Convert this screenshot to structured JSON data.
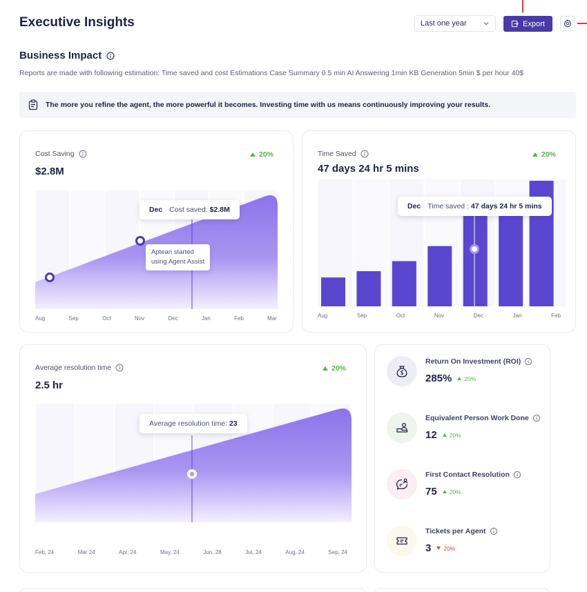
{
  "header": {
    "title": "Executive Insights",
    "range_select": "Last one year",
    "export_label": "Export"
  },
  "section": {
    "title": "Business Impact",
    "subtitle": "Reports are made with following estimation:  Time saved and cost Estimations Case Summary 0.5 min AI Answering 1min KB Generation 5min  $ per hour 40$",
    "banner": "The more you refine the agent, the more powerful it becomes. Investing time with us means continuously improving your results."
  },
  "cost_card": {
    "label": "Cost Saving",
    "value": "$2.8M",
    "change": "20%",
    "tooltip_month": "Dec",
    "tooltip_label": "Cost saved:",
    "tooltip_value": "$2.8M",
    "note_line1": "Aptean started",
    "note_line2": "using Agent Assist"
  },
  "time_card": {
    "label": "Time Saved",
    "value": "47 days 24 hr 5 mins",
    "change": "20%",
    "tooltip_month": "Dec",
    "tooltip_label": "Time saved :",
    "tooltip_value": "47 days 24 hr 5 mins"
  },
  "res_card": {
    "label": "Average resolution time",
    "value": "2.5 hr",
    "change": "20%",
    "tooltip_label": "Average resolution time:",
    "tooltip_value": "23"
  },
  "kpis": [
    {
      "label": "Return On Investment (ROI)",
      "value": "285%",
      "change": "20%",
      "trend": "up",
      "icon": "money-bag-icon"
    },
    {
      "label": "Equivalent Person Work Done",
      "value": "12",
      "change": "20%",
      "trend": "up",
      "icon": "person-desk-icon"
    },
    {
      "label": "First Contact Resolution",
      "value": "75",
      "change": "20%",
      "trend": "up",
      "icon": "chat-person-icon"
    },
    {
      "label": "Tickets per Agent",
      "value": "3",
      "change": "20%",
      "trend": "down",
      "icon": "ticket-icon"
    }
  ],
  "colors": {
    "accent": "#5b46d0",
    "positive": "#56b54a",
    "negative": "#e0443e"
  },
  "chart_data": [
    {
      "type": "area",
      "categories": [
        "Aug",
        "Sep",
        "Oct",
        "Nov",
        "Dec",
        "Jan",
        "Feb",
        "Mar"
      ],
      "grid": true
    },
    {
      "type": "bar",
      "categories": [
        "Aug",
        "Sep",
        "Oct",
        "Nov",
        "Dec",
        "Jan",
        "Feb"
      ],
      "grid": true
    },
    {
      "type": "area",
      "categories": [
        "Feb, 24",
        "Mar 24",
        "Apr, 24",
        "May, 24",
        "Jun, 28",
        "Jul, 24",
        "Aug, 24",
        "Sep, 24"
      ],
      "grid": true
    }
  ]
}
